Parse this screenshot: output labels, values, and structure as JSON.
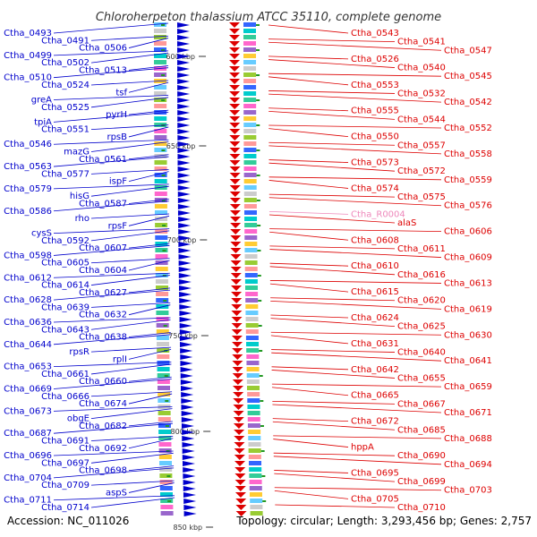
{
  "title": "Chloroherpeton thalassium ATCC 35110, complete genome",
  "footer": {
    "accession": "Accession: NC_011026",
    "summary": "Topology: circular; Length: 3,293,456 bp; Genes: 2,757"
  },
  "colors": {
    "left_strand": "#0000cc",
    "right_strand": "#dd0000",
    "rna": "#ee88bb",
    "backbone": "#999999",
    "tick": "#229922"
  },
  "backbone_ticks": [
    "600 kbp",
    "650 kbp",
    "700 kbp",
    "750 kbp",
    "800 kbp",
    "850 kbp"
  ],
  "left_labels": [
    "Ctha_0493",
    "Ctha_0491",
    "Ctha_0506",
    "Ctha_0499",
    "Ctha_0502",
    "Ctha_0513",
    "Ctha_0510",
    "Ctha_0524",
    "tsf",
    "greA",
    "Ctha_0525",
    "pyrH",
    "tpiA",
    "Ctha_0551",
    "rpsB",
    "Ctha_0546",
    "mazG",
    "Ctha_0561",
    "Ctha_0563",
    "Ctha_0577",
    "ispF",
    "Ctha_0579",
    "hisG",
    "Ctha_0587",
    "Ctha_0586",
    "rho",
    "rpsF",
    "cysS",
    "Ctha_0592",
    "Ctha_0607",
    "Ctha_0598",
    "Ctha_0605",
    "Ctha_0604",
    "Ctha_0612",
    "Ctha_0614",
    "Ctha_0627",
    "Ctha_0628",
    "Ctha_0639",
    "Ctha_0632",
    "Ctha_0636",
    "Ctha_0643",
    "Ctha_0638",
    "Ctha_0644",
    "rpsR",
    "rplI",
    "Ctha_0653",
    "Ctha_0661",
    "Ctha_0660",
    "Ctha_0669",
    "Ctha_0666",
    "Ctha_0674",
    "Ctha_0673",
    "obgE",
    "Ctha_0682",
    "Ctha_0687",
    "Ctha_0691",
    "Ctha_0692",
    "Ctha_0696",
    "Ctha_0697",
    "Ctha_0698",
    "Ctha_0704",
    "Ctha_0709",
    "aspS",
    "Ctha_0711",
    "Ctha_0714"
  ],
  "right_labels": [
    "Ctha_0543",
    "Ctha_0541",
    "Ctha_0547",
    "Ctha_0526",
    "Ctha_0540",
    "Ctha_0545",
    "Ctha_0553",
    "Ctha_0532",
    "Ctha_0542",
    "Ctha_0555",
    "Ctha_0544",
    "Ctha_0552",
    "Ctha_0550",
    "Ctha_0557",
    "Ctha_0558",
    "Ctha_0573",
    "Ctha_0572",
    "Ctha_0559",
    "Ctha_0574",
    "Ctha_0575",
    "Ctha_0576",
    "Ctha_R0004",
    "alaS",
    "Ctha_0606",
    "Ctha_0608",
    "Ctha_0611",
    "Ctha_0609",
    "Ctha_0610",
    "Ctha_0616",
    "Ctha_0613",
    "Ctha_0615",
    "Ctha_0620",
    "Ctha_0619",
    "Ctha_0624",
    "Ctha_0625",
    "Ctha_0630",
    "Ctha_0631",
    "Ctha_0640",
    "Ctha_0641",
    "Ctha_0642",
    "Ctha_0655",
    "Ctha_0659",
    "Ctha_0665",
    "Ctha_0667",
    "Ctha_0671",
    "Ctha_0672",
    "Ctha_0685",
    "Ctha_0688",
    "hppA",
    "Ctha_0690",
    "Ctha_0694",
    "Ctha_0695",
    "Ctha_0699",
    "Ctha_0703",
    "Ctha_0705",
    "Ctha_0710"
  ]
}
